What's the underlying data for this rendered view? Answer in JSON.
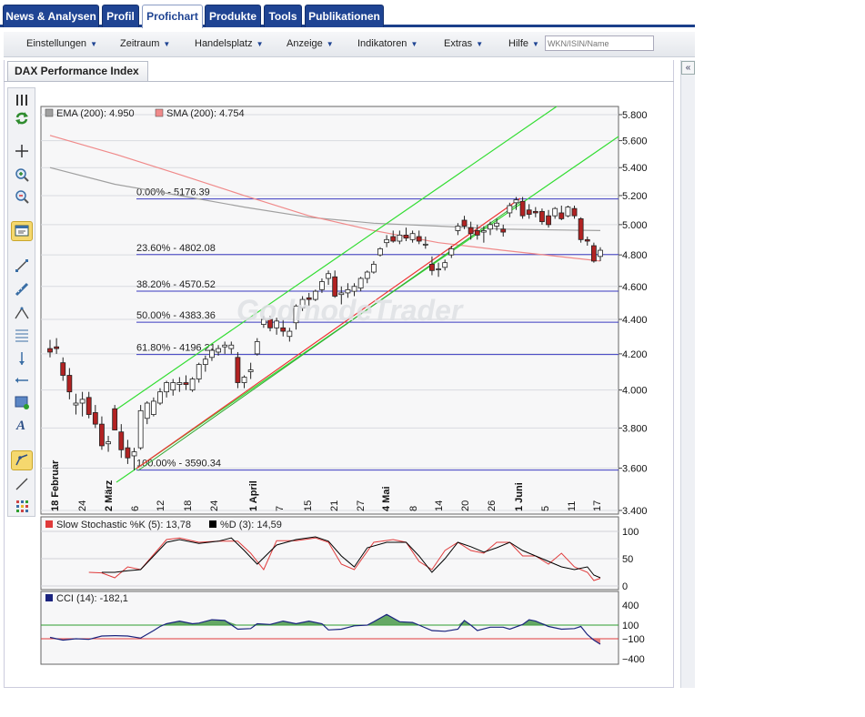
{
  "tabs": [
    {
      "label": "News & Analysen",
      "active": false
    },
    {
      "label": "Profil",
      "active": false
    },
    {
      "label": "Profichart",
      "active": true
    },
    {
      "label": "Produkte",
      "active": false
    },
    {
      "label": "Tools",
      "active": false
    },
    {
      "label": "Publikationen",
      "active": false
    }
  ],
  "menu": [
    "Einstellungen",
    "Zeitraum",
    "Handelsplatz",
    "Anzeige",
    "Indikatoren",
    "Extras",
    "Hilfe"
  ],
  "search": {
    "placeholder": "WKN/ISIN/Name"
  },
  "panel": {
    "title": "DAX Performance Index",
    "collapse_label": "«"
  },
  "watermark": "GodmodeTrader",
  "toolbar_icons": [
    "grip-icon",
    "refresh-icon",
    "crosshair-icon",
    "zoom-in-icon",
    "zoom-out-icon",
    "window-icon",
    "line-icon",
    "ruler-icon",
    "triangle-icon",
    "fibonacci-icon",
    "vertical-line-icon",
    "horizontal-line-icon",
    "rectangle-icon",
    "text-icon",
    "trend-tool-icon",
    "draw-line-icon",
    "grid-icon"
  ],
  "legend": {
    "ema": {
      "label": "EMA (200): 4.950",
      "color": "#a0a0a0"
    },
    "sma": {
      "label": "SMA (200): 4.754",
      "color": "#f08a8a"
    },
    "stoch_k": {
      "label": "Slow Stochastic %K (5): 13,78",
      "color": "#e03b3b"
    },
    "stoch_d": {
      "label": "%D (3): 14,59",
      "color": "#000000"
    },
    "cci": {
      "label": "CCI (14): -182,1",
      "color": "#1a237e"
    }
  },
  "chart_data": {
    "type": "candlestick",
    "price_axis": {
      "min": 3400,
      "max": 5800,
      "ticks": [
        "5.800",
        "5.600",
        "5.400",
        "5.200",
        "5.000",
        "4.800",
        "4.600",
        "4.400",
        "4.200",
        "4.000",
        "3.800",
        "3.600",
        "3.400"
      ]
    },
    "date_labels": [
      "18 Februar",
      "24",
      "2 März",
      "6",
      "12",
      "18",
      "24",
      "1 April",
      "7",
      "15",
      "21",
      "27",
      "4 Mai",
      "8",
      "14",
      "20",
      "26",
      "1 Juni",
      "5",
      "11",
      "17"
    ],
    "fibonacci": [
      {
        "label": "0.00% - 5176.39",
        "value": 5176.39
      },
      {
        "label": "23.60% - 4802.08",
        "value": 4802.08
      },
      {
        "label": "38.20% - 4570.52",
        "value": 4570.52
      },
      {
        "label": "50.00% - 4383.36",
        "value": 4383.36
      },
      {
        "label": "61.80% - 4196.21",
        "value": 4196.21
      },
      {
        "label": "100.00% - 3590.34",
        "value": 3590.34
      }
    ],
    "candles": [
      [
        4230,
        4280,
        4180,
        4210
      ],
      [
        4240,
        4290,
        4200,
        4230
      ],
      [
        4150,
        4180,
        4050,
        4080
      ],
      [
        4080,
        4120,
        3950,
        3990
      ],
      [
        3920,
        3980,
        3870,
        3930
      ],
      [
        3930,
        3990,
        3860,
        3950
      ],
      [
        3960,
        3990,
        3850,
        3870
      ],
      [
        3880,
        3920,
        3800,
        3820
      ],
      [
        3820,
        3860,
        3690,
        3710
      ],
      [
        3720,
        3760,
        3680,
        3730
      ],
      [
        3900,
        3920,
        3790,
        3790
      ],
      [
        3780,
        3820,
        3650,
        3690
      ],
      [
        3700,
        3740,
        3620,
        3650
      ],
      [
        3660,
        3700,
        3590,
        3680
      ],
      [
        3700,
        3920,
        3690,
        3890
      ],
      [
        3850,
        3940,
        3820,
        3930
      ],
      [
        3870,
        3960,
        3860,
        3940
      ],
      [
        3930,
        4010,
        3920,
        3990
      ],
      [
        3990,
        4050,
        3960,
        4040
      ],
      [
        4000,
        4060,
        3970,
        4040
      ],
      [
        4030,
        4070,
        3990,
        4040
      ],
      [
        4040,
        4080,
        4000,
        4030
      ],
      [
        4000,
        4070,
        3990,
        4060
      ],
      [
        4060,
        4150,
        4040,
        4140
      ],
      [
        4140,
        4190,
        4100,
        4170
      ],
      [
        4180,
        4230,
        4160,
        4220
      ],
      [
        4210,
        4250,
        4190,
        4230
      ],
      [
        4240,
        4270,
        4200,
        4250
      ],
      [
        4230,
        4270,
        4200,
        4250
      ],
      [
        4180,
        4210,
        4010,
        4040
      ],
      [
        4040,
        4080,
        4010,
        4070
      ],
      [
        4100,
        4150,
        4060,
        4110
      ],
      [
        4200,
        4290,
        4190,
        4270
      ],
      [
        4370,
        4420,
        4350,
        4400
      ],
      [
        4400,
        4420,
        4330,
        4350
      ],
      [
        4350,
        4410,
        4310,
        4390
      ],
      [
        4350,
        4400,
        4300,
        4330
      ],
      [
        4300,
        4350,
        4270,
        4330
      ],
      [
        4380,
        4490,
        4340,
        4480
      ],
      [
        4470,
        4540,
        4450,
        4520
      ],
      [
        4530,
        4560,
        4480,
        4520
      ],
      [
        4520,
        4580,
        4510,
        4570
      ],
      [
        4580,
        4650,
        4560,
        4630
      ],
      [
        4650,
        4700,
        4610,
        4680
      ],
      [
        4660,
        4700,
        4530,
        4540
      ],
      [
        4550,
        4600,
        4490,
        4560
      ],
      [
        4560,
        4620,
        4530,
        4580
      ],
      [
        4570,
        4620,
        4540,
        4600
      ],
      [
        4590,
        4660,
        4570,
        4650
      ],
      [
        4650,
        4700,
        4620,
        4690
      ],
      [
        4690,
        4760,
        4680,
        4740
      ],
      [
        4800,
        4850,
        4790,
        4840
      ],
      [
        4880,
        4930,
        4850,
        4900
      ],
      [
        4920,
        4960,
        4880,
        4890
      ],
      [
        4890,
        4960,
        4870,
        4930
      ],
      [
        4930,
        4980,
        4890,
        4910
      ],
      [
        4900,
        4960,
        4880,
        4940
      ],
      [
        4920,
        4960,
        4870,
        4890
      ],
      [
        4870,
        4920,
        4840,
        4870
      ],
      [
        4740,
        4790,
        4670,
        4700
      ],
      [
        4710,
        4750,
        4660,
        4710
      ],
      [
        4720,
        4770,
        4700,
        4750
      ],
      [
        4800,
        4860,
        4780,
        4840
      ],
      [
        4960,
        5010,
        4930,
        4990
      ],
      [
        5030,
        5060,
        4970,
        4990
      ],
      [
        4980,
        5020,
        4900,
        4940
      ],
      [
        4960,
        5000,
        4900,
        4930
      ],
      [
        4950,
        4990,
        4880,
        4960
      ],
      [
        4970,
        5020,
        4930,
        5000
      ],
      [
        4990,
        5040,
        4960,
        5010
      ],
      [
        4970,
        5000,
        4920,
        4950
      ],
      [
        5080,
        5150,
        5050,
        5130
      ],
      [
        5150,
        5190,
        5100,
        5170
      ],
      [
        5160,
        5190,
        5040,
        5060
      ],
      [
        5100,
        5140,
        5040,
        5070
      ],
      [
        5090,
        5120,
        5050,
        5080
      ],
      [
        5090,
        5110,
        5000,
        5020
      ],
      [
        5060,
        5100,
        4980,
        5000
      ],
      [
        5060,
        5120,
        5040,
        5110
      ],
      [
        5080,
        5130,
        5030,
        5040
      ],
      [
        5060,
        5130,
        5050,
        5120
      ],
      [
        5110,
        5130,
        5040,
        5060
      ],
      [
        5040,
        5050,
        4880,
        4900
      ],
      [
        4900,
        4920,
        4860,
        4890
      ],
      [
        4860,
        4880,
        4750,
        4760
      ],
      [
        4790,
        4850,
        4760,
        4830
      ]
    ],
    "ema200": [
      [
        0,
        5400
      ],
      [
        10,
        5280
      ],
      [
        20,
        5200
      ],
      [
        30,
        5120
      ],
      [
        40,
        5050
      ],
      [
        50,
        5010
      ],
      [
        60,
        4990
      ],
      [
        70,
        4970
      ],
      [
        85,
        4960
      ]
    ],
    "sma200": [
      [
        0,
        5640
      ],
      [
        10,
        5500
      ],
      [
        20,
        5350
      ],
      [
        30,
        5200
      ],
      [
        40,
        5060
      ],
      [
        50,
        4960
      ],
      [
        60,
        4880
      ],
      [
        70,
        4830
      ],
      [
        85,
        4760
      ]
    ],
    "stoch_k": [
      [
        6,
        25
      ],
      [
        8,
        24
      ],
      [
        10,
        15
      ],
      [
        12,
        35
      ],
      [
        14,
        30
      ],
      [
        18,
        85
      ],
      [
        20,
        88
      ],
      [
        23,
        80
      ],
      [
        26,
        82
      ],
      [
        29,
        82
      ],
      [
        31,
        60
      ],
      [
        33,
        30
      ],
      [
        35,
        83
      ],
      [
        38,
        83
      ],
      [
        41,
        88
      ],
      [
        43,
        80
      ],
      [
        45,
        40
      ],
      [
        47,
        30
      ],
      [
        50,
        80
      ],
      [
        53,
        85
      ],
      [
        55,
        80
      ],
      [
        57,
        45
      ],
      [
        59,
        30
      ],
      [
        61,
        65
      ],
      [
        63,
        80
      ],
      [
        65,
        65
      ],
      [
        67,
        60
      ],
      [
        69,
        80
      ],
      [
        71,
        80
      ],
      [
        73,
        55
      ],
      [
        75,
        55
      ],
      [
        77,
        40
      ],
      [
        79,
        60
      ],
      [
        81,
        35
      ],
      [
        83,
        25
      ],
      [
        84,
        10
      ],
      [
        85,
        14
      ]
    ],
    "stoch_d": [
      [
        8,
        25
      ],
      [
        10,
        25
      ],
      [
        12,
        28
      ],
      [
        14,
        30
      ],
      [
        16,
        55
      ],
      [
        18,
        80
      ],
      [
        20,
        85
      ],
      [
        23,
        78
      ],
      [
        26,
        82
      ],
      [
        28,
        88
      ],
      [
        30,
        65
      ],
      [
        32,
        40
      ],
      [
        35,
        75
      ],
      [
        38,
        85
      ],
      [
        41,
        90
      ],
      [
        43,
        82
      ],
      [
        45,
        55
      ],
      [
        47,
        35
      ],
      [
        49,
        70
      ],
      [
        52,
        80
      ],
      [
        55,
        80
      ],
      [
        57,
        55
      ],
      [
        59,
        25
      ],
      [
        61,
        50
      ],
      [
        63,
        80
      ],
      [
        65,
        72
      ],
      [
        67,
        62
      ],
      [
        69,
        70
      ],
      [
        71,
        80
      ],
      [
        73,
        65
      ],
      [
        75,
        55
      ],
      [
        77,
        45
      ],
      [
        79,
        35
      ],
      [
        81,
        30
      ],
      [
        83,
        35
      ],
      [
        84,
        20
      ],
      [
        85,
        15
      ]
    ],
    "stoch_axis": [
      "100",
      "50",
      "0"
    ],
    "cci": [
      [
        0,
        -80
      ],
      [
        2,
        -120
      ],
      [
        4,
        -100
      ],
      [
        6,
        -110
      ],
      [
        8,
        -60
      ],
      [
        10,
        -55
      ],
      [
        12,
        -60
      ],
      [
        14,
        -90
      ],
      [
        16,
        20
      ],
      [
        17,
        80
      ],
      [
        18,
        120
      ],
      [
        20,
        160
      ],
      [
        22,
        120
      ],
      [
        23,
        130
      ],
      [
        25,
        180
      ],
      [
        27,
        170
      ],
      [
        29,
        40
      ],
      [
        31,
        50
      ],
      [
        32,
        120
      ],
      [
        34,
        110
      ],
      [
        36,
        160
      ],
      [
        38,
        120
      ],
      [
        40,
        160
      ],
      [
        42,
        120
      ],
      [
        43,
        30
      ],
      [
        45,
        40
      ],
      [
        47,
        90
      ],
      [
        49,
        100
      ],
      [
        50,
        150
      ],
      [
        52,
        260
      ],
      [
        54,
        150
      ],
      [
        56,
        140
      ],
      [
        57,
        100
      ],
      [
        59,
        20
      ],
      [
        61,
        10
      ],
      [
        63,
        40
      ],
      [
        64,
        170
      ],
      [
        65,
        100
      ],
      [
        66,
        20
      ],
      [
        68,
        70
      ],
      [
        70,
        70
      ],
      [
        71,
        40
      ],
      [
        73,
        110
      ],
      [
        74,
        180
      ],
      [
        75,
        160
      ],
      [
        77,
        80
      ],
      [
        79,
        40
      ],
      [
        81,
        50
      ],
      [
        82,
        80
      ],
      [
        83,
        -40
      ],
      [
        84,
        -120
      ],
      [
        85,
        -182
      ]
    ],
    "cci_axis": [
      "400",
      "100",
      "−100",
      "−400"
    ],
    "cci_axis_colors": [
      "#111111",
      "#2e9e2e",
      "#e03b3b",
      "#111111"
    ]
  }
}
